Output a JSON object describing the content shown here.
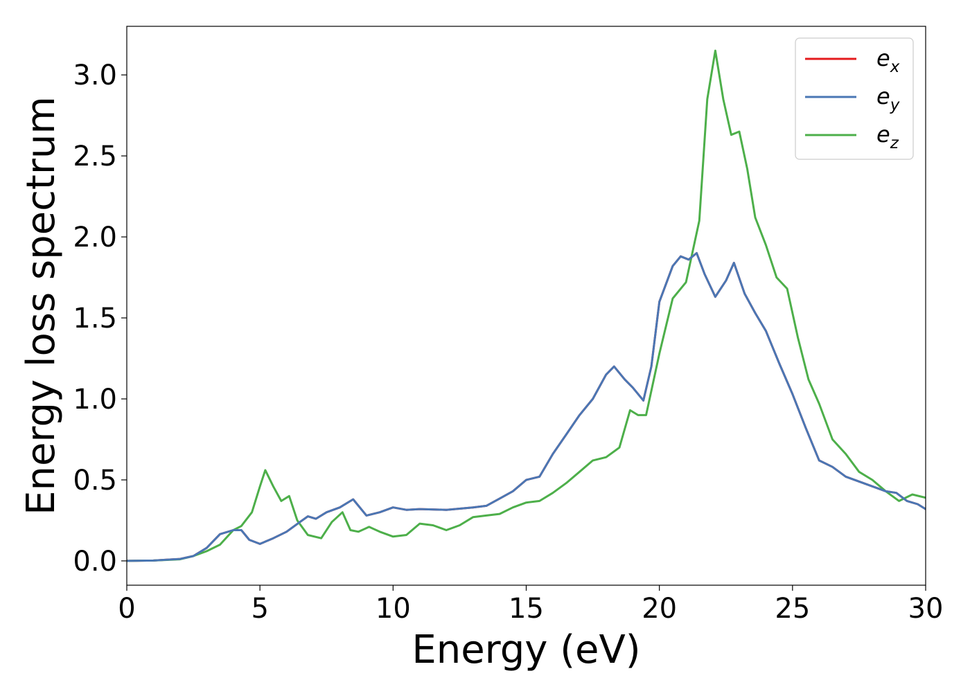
{
  "chart_data": {
    "type": "line",
    "title": "",
    "xlabel": "Energy (eV)",
    "ylabel": "Energy loss spectrum",
    "xlim": [
      0,
      30
    ],
    "ylim": [
      -0.15,
      3.3
    ],
    "xticks": [
      0,
      5,
      10,
      15,
      20,
      25,
      30
    ],
    "xtick_labels": [
      "0",
      "5",
      "10",
      "15",
      "20",
      "25",
      "30"
    ],
    "yticks": [
      0.0,
      0.5,
      1.0,
      1.5,
      2.0,
      2.5,
      3.0
    ],
    "ytick_labels": [
      "0.0",
      "0.5",
      "1.0",
      "1.5",
      "2.0",
      "2.5",
      "3.0"
    ],
    "grid": false,
    "legend_position": "top-right",
    "series": [
      {
        "name": "e_x",
        "legend_base": "e",
        "legend_sub": "x",
        "color": "#e41a1c",
        "x": [
          0,
          1,
          2,
          2.5,
          3,
          3.5,
          4,
          4.3,
          4.6,
          5,
          5.5,
          6,
          6.5,
          6.8,
          7.1,
          7.5,
          8,
          8.5,
          9,
          9.5,
          10,
          10.5,
          11,
          12,
          13,
          13.5,
          14,
          14.5,
          15,
          15.5,
          16,
          16.5,
          17,
          17.5,
          18,
          18.3,
          18.7,
          19,
          19.4,
          19.7,
          20,
          20.5,
          20.8,
          21.1,
          21.4,
          21.7,
          22.1,
          22.5,
          22.8,
          23.2,
          23.6,
          24,
          24.5,
          25,
          25.5,
          26,
          26.5,
          27,
          27.5,
          28,
          28.5,
          28.9,
          29.3,
          29.7,
          30
        ],
        "y": [
          0.0,
          0.002,
          0.012,
          0.03,
          0.08,
          0.165,
          0.19,
          0.19,
          0.13,
          0.105,
          0.14,
          0.18,
          0.24,
          0.275,
          0.26,
          0.3,
          0.33,
          0.38,
          0.28,
          0.3,
          0.33,
          0.315,
          0.32,
          0.315,
          0.33,
          0.34,
          0.385,
          0.43,
          0.5,
          0.52,
          0.66,
          0.78,
          0.9,
          1.0,
          1.15,
          1.2,
          1.12,
          1.07,
          0.99,
          1.2,
          1.6,
          1.82,
          1.88,
          1.86,
          1.9,
          1.77,
          1.63,
          1.73,
          1.84,
          1.65,
          1.53,
          1.42,
          1.22,
          1.03,
          0.82,
          0.62,
          0.58,
          0.52,
          0.49,
          0.46,
          0.43,
          0.42,
          0.37,
          0.35,
          0.32
        ]
      },
      {
        "name": "e_y",
        "legend_base": "e",
        "legend_sub": "y",
        "color": "#4a77b4",
        "x": [
          0,
          1,
          2,
          2.5,
          3,
          3.5,
          4,
          4.3,
          4.6,
          5,
          5.5,
          6,
          6.5,
          6.8,
          7.1,
          7.5,
          8,
          8.5,
          9,
          9.5,
          10,
          10.5,
          11,
          12,
          13,
          13.5,
          14,
          14.5,
          15,
          15.5,
          16,
          16.5,
          17,
          17.5,
          18,
          18.3,
          18.7,
          19,
          19.4,
          19.7,
          20,
          20.5,
          20.8,
          21.1,
          21.4,
          21.7,
          22.1,
          22.5,
          22.8,
          23.2,
          23.6,
          24,
          24.5,
          25,
          25.5,
          26,
          26.5,
          27,
          27.5,
          28,
          28.5,
          28.9,
          29.3,
          29.7,
          30
        ],
        "y": [
          0.0,
          0.002,
          0.012,
          0.03,
          0.08,
          0.165,
          0.19,
          0.19,
          0.13,
          0.105,
          0.14,
          0.18,
          0.24,
          0.275,
          0.26,
          0.3,
          0.33,
          0.38,
          0.28,
          0.3,
          0.33,
          0.315,
          0.32,
          0.315,
          0.33,
          0.34,
          0.385,
          0.43,
          0.5,
          0.52,
          0.66,
          0.78,
          0.9,
          1.0,
          1.15,
          1.2,
          1.12,
          1.07,
          0.99,
          1.2,
          1.6,
          1.82,
          1.88,
          1.86,
          1.9,
          1.77,
          1.63,
          1.73,
          1.84,
          1.65,
          1.53,
          1.42,
          1.22,
          1.03,
          0.82,
          0.62,
          0.58,
          0.52,
          0.49,
          0.46,
          0.43,
          0.42,
          0.37,
          0.35,
          0.32
        ]
      },
      {
        "name": "e_z",
        "legend_base": "e",
        "legend_sub": "z",
        "color": "#4daf4a",
        "x": [
          0,
          1,
          2,
          2.5,
          3,
          3.5,
          4,
          4.3,
          4.7,
          5,
          5.2,
          5.5,
          5.8,
          6.1,
          6.4,
          6.8,
          7.3,
          7.7,
          8.1,
          8.4,
          8.7,
          9.1,
          9.5,
          10,
          10.5,
          11,
          11.5,
          12,
          12.5,
          13,
          13.5,
          14,
          14.5,
          15,
          15.5,
          16,
          16.5,
          17,
          17.5,
          18,
          18.5,
          18.9,
          19.2,
          19.5,
          20,
          20.5,
          21,
          21.5,
          21.8,
          22.1,
          22.4,
          22.7,
          23,
          23.3,
          23.6,
          24,
          24.4,
          24.8,
          25.2,
          25.6,
          26,
          26.5,
          27,
          27.5,
          28,
          28.5,
          29,
          29.5,
          30
        ],
        "y": [
          0.0,
          0.002,
          0.01,
          0.03,
          0.06,
          0.1,
          0.19,
          0.215,
          0.3,
          0.46,
          0.56,
          0.46,
          0.37,
          0.4,
          0.25,
          0.16,
          0.14,
          0.24,
          0.3,
          0.19,
          0.18,
          0.21,
          0.18,
          0.15,
          0.16,
          0.23,
          0.22,
          0.19,
          0.22,
          0.27,
          0.28,
          0.29,
          0.33,
          0.36,
          0.37,
          0.42,
          0.48,
          0.55,
          0.62,
          0.64,
          0.7,
          0.93,
          0.9,
          0.9,
          1.28,
          1.62,
          1.72,
          2.1,
          2.85,
          3.15,
          2.85,
          2.63,
          2.65,
          2.42,
          2.12,
          1.95,
          1.75,
          1.68,
          1.38,
          1.12,
          0.97,
          0.75,
          0.66,
          0.55,
          0.5,
          0.43,
          0.37,
          0.41,
          0.39
        ]
      }
    ]
  }
}
